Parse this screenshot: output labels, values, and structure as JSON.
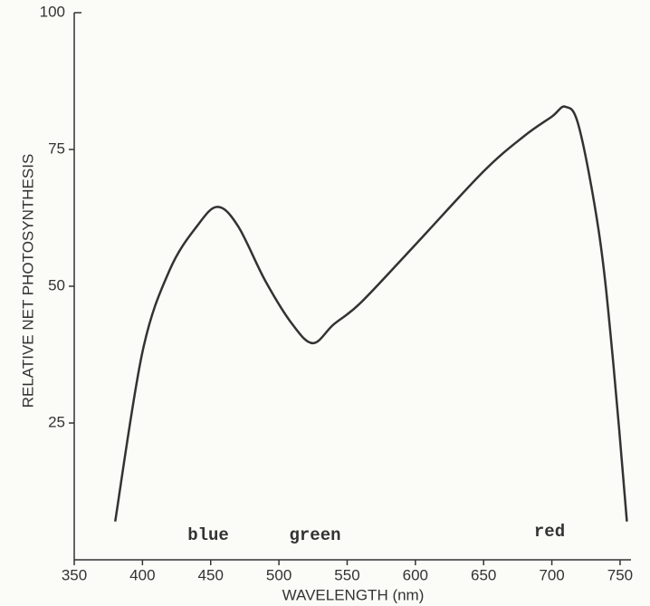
{
  "chart_data": {
    "type": "line",
    "xlabel": "WAVELENGTH (nm)",
    "ylabel": "RELATIVE NET PHOTOSYNTHESIS",
    "x": [
      380,
      400,
      420,
      440,
      455,
      470,
      490,
      510,
      525,
      540,
      560,
      600,
      650,
      680,
      700,
      710,
      720,
      735,
      745,
      755
    ],
    "values": [
      7,
      38,
      53,
      61,
      64.5,
      61,
      51,
      43,
      39.6,
      43,
      47,
      57.6,
      71,
      77.5,
      81,
      82.8,
      79,
      59,
      36,
      7
    ],
    "color": "#333333",
    "xlim": [
      350,
      758
    ],
    "xticks": [
      350,
      400,
      450,
      500,
      550,
      600,
      650,
      700,
      750
    ],
    "ylim": [
      0,
      100
    ],
    "yticks": [
      25,
      50,
      75,
      100
    ],
    "annotations": [
      "blue",
      "green",
      "red"
    ]
  }
}
